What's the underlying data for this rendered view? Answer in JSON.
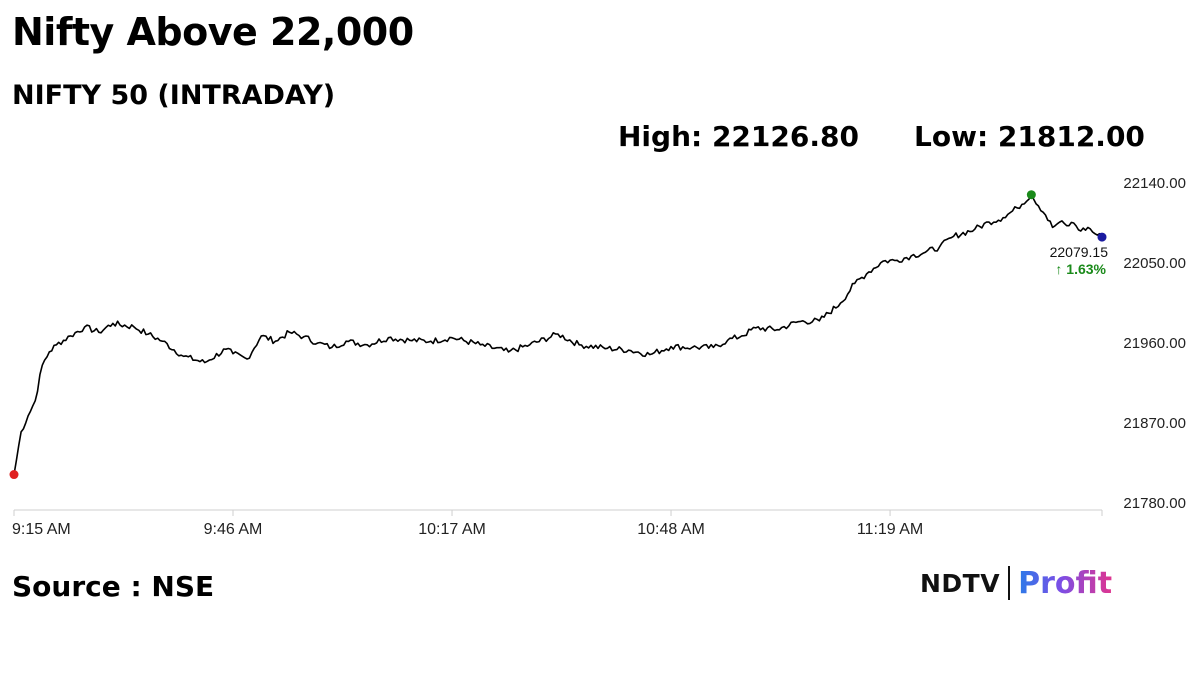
{
  "headline": "Nifty Above 22,000",
  "subtitle": "NIFTY 50 (INTRADAY)",
  "stats": {
    "high": "High: 22126.80",
    "low": "Low: 21812.00"
  },
  "source": "Source : NSE",
  "logo": {
    "brand": "NDTV",
    "product": "Profit"
  },
  "chart_data": {
    "type": "line",
    "title": "NIFTY 50 (INTRADAY)",
    "x_unit": "minutes after 9:15 AM",
    "y_ticks": [
      "22140.00",
      "22050.00",
      "21960.00",
      "21870.00",
      "21780.00"
    ],
    "x_ticks": [
      "9:15 AM",
      "9:46 AM",
      "10:17 AM",
      "10:48 AM",
      "11:19 AM"
    ],
    "ylim": [
      21780,
      22140
    ],
    "xlim": [
      0,
      154
    ],
    "y_axis_position": "right",
    "grid": false,
    "high": 22126.8,
    "low": 21812.0,
    "last_value": "22079.15",
    "change": "↑ 1.63%",
    "colors": {
      "line": "#000000",
      "open_marker": "#e02020",
      "high_marker": "#1a8a1a",
      "last_marker": "#1a1aa0",
      "change_text": "#1a8a1a"
    },
    "series": [
      {
        "x": [
          0,
          1,
          2,
          3,
          4,
          5,
          6,
          8,
          10,
          12,
          14,
          17,
          19,
          21,
          24,
          27,
          30,
          31,
          33,
          35,
          37,
          39,
          41,
          43,
          45,
          47,
          50,
          53,
          56,
          59,
          62,
          66,
          70,
          73,
          77,
          80,
          84,
          87,
          90,
          93,
          96,
          99,
          101,
          103,
          105,
          108,
          111,
          114,
          117,
          119,
          121,
          123,
          125,
          127,
          129,
          131,
          133,
          136,
          138,
          140,
          142,
          144,
          146,
          147,
          148,
          149,
          150,
          151,
          152,
          153,
          154
        ],
        "y": [
          21812,
          21860,
          21878,
          21895,
          21935,
          21950,
          21958,
          21968,
          21978,
          21972,
          21982,
          21978,
          21970,
          21962,
          21945,
          21938,
          21953,
          21948,
          21942,
          21968,
          21962,
          21972,
          21967,
          21960,
          21955,
          21962,
          21958,
          21966,
          21963,
          21962,
          21966,
          21958,
          21950,
          21958,
          21970,
          21958,
          21954,
          21952,
          21947,
          21956,
          21955,
          21955,
          21963,
          21968,
          21977,
          21975,
          21984,
          21985,
          22005,
          22027,
          22040,
          22052,
          22053,
          22058,
          22062,
          22068,
          22080,
          22088,
          22096,
          22101,
          22112,
          22126.8,
          22104,
          22090,
          22096,
          22092,
          22095,
          22086,
          22090,
          22083,
          22079.15
        ]
      }
    ]
  }
}
